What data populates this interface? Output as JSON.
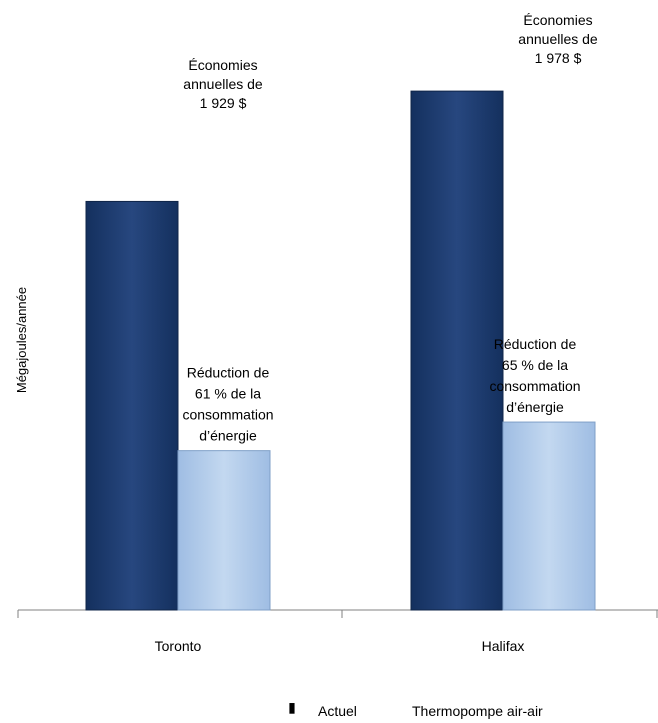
{
  "chart_data": {
    "type": "bar",
    "ylabel": "Mégajoules/année",
    "xlabel": "",
    "categories": [
      "Toronto",
      "Halifax"
    ],
    "series": [
      {
        "name": "Actuel",
        "values": [
          100,
          127
        ],
        "color": "#1f3a6e"
      },
      {
        "name": "Thermopompe air-air",
        "values": [
          39,
          46
        ],
        "color": "#a9c6e8"
      }
    ],
    "ylim": [
      0,
      140
    ],
    "grid": false,
    "legend": "bottom",
    "annotations": {
      "savings": [
        [
          "Économies",
          "annuelles de",
          "1 929 $"
        ],
        [
          "Économies",
          "annuelles de",
          "1 978 $"
        ]
      ],
      "reductions": [
        [
          "Réduction de",
          "61 % de la",
          "consommation",
          "d’énergie"
        ],
        [
          "Réduction de",
          "65 % de la",
          "consommation",
          "d’énergie"
        ]
      ]
    }
  },
  "legend_marker": "▮"
}
